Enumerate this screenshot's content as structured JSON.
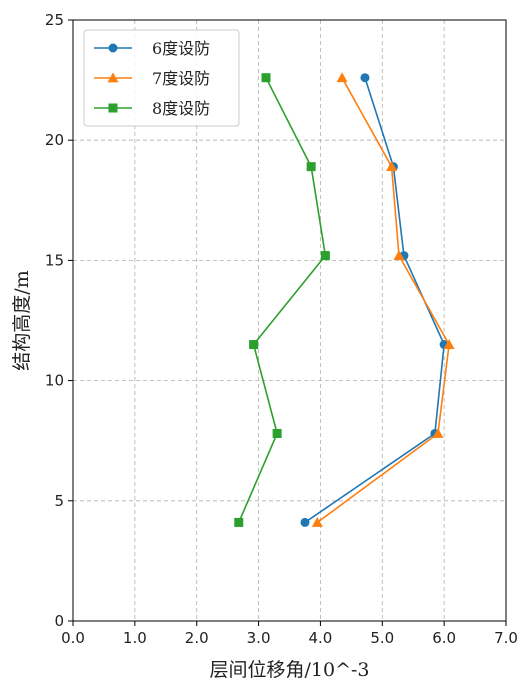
{
  "chart_data": {
    "type": "line",
    "xlabel": "层间位移角/10^-3",
    "ylabel": "结构高度/m",
    "xlim": [
      0,
      7
    ],
    "ylim": [
      0,
      25
    ],
    "xticks": [
      "0.0",
      "1.0",
      "2.0",
      "3.0",
      "4.0",
      "5.0",
      "6.0",
      "7.0"
    ],
    "yticks": [
      "0",
      "5",
      "10",
      "15",
      "20",
      "25"
    ],
    "grid": true,
    "legend_position": "top-left",
    "series": [
      {
        "name": "6度设防",
        "color": "#1f77b4",
        "marker": "circle",
        "points": [
          [
            3.75,
            4.1
          ],
          [
            5.85,
            7.8
          ],
          [
            6.0,
            11.5
          ],
          [
            5.35,
            15.2
          ],
          [
            5.18,
            18.9
          ],
          [
            4.72,
            22.6
          ]
        ]
      },
      {
        "name": "7度设防",
        "color": "#ff7f0e",
        "marker": "triangle",
        "points": [
          [
            3.95,
            4.1
          ],
          [
            5.9,
            7.8
          ],
          [
            6.08,
            11.5
          ],
          [
            5.27,
            15.2
          ],
          [
            5.15,
            18.9
          ],
          [
            4.35,
            22.6
          ]
        ]
      },
      {
        "name": "8度设防",
        "color": "#2ca02c",
        "marker": "square",
        "points": [
          [
            2.68,
            4.1
          ],
          [
            3.3,
            7.8
          ],
          [
            2.92,
            11.5
          ],
          [
            4.08,
            15.2
          ],
          [
            3.85,
            18.9
          ],
          [
            3.12,
            22.6
          ]
        ]
      }
    ]
  }
}
